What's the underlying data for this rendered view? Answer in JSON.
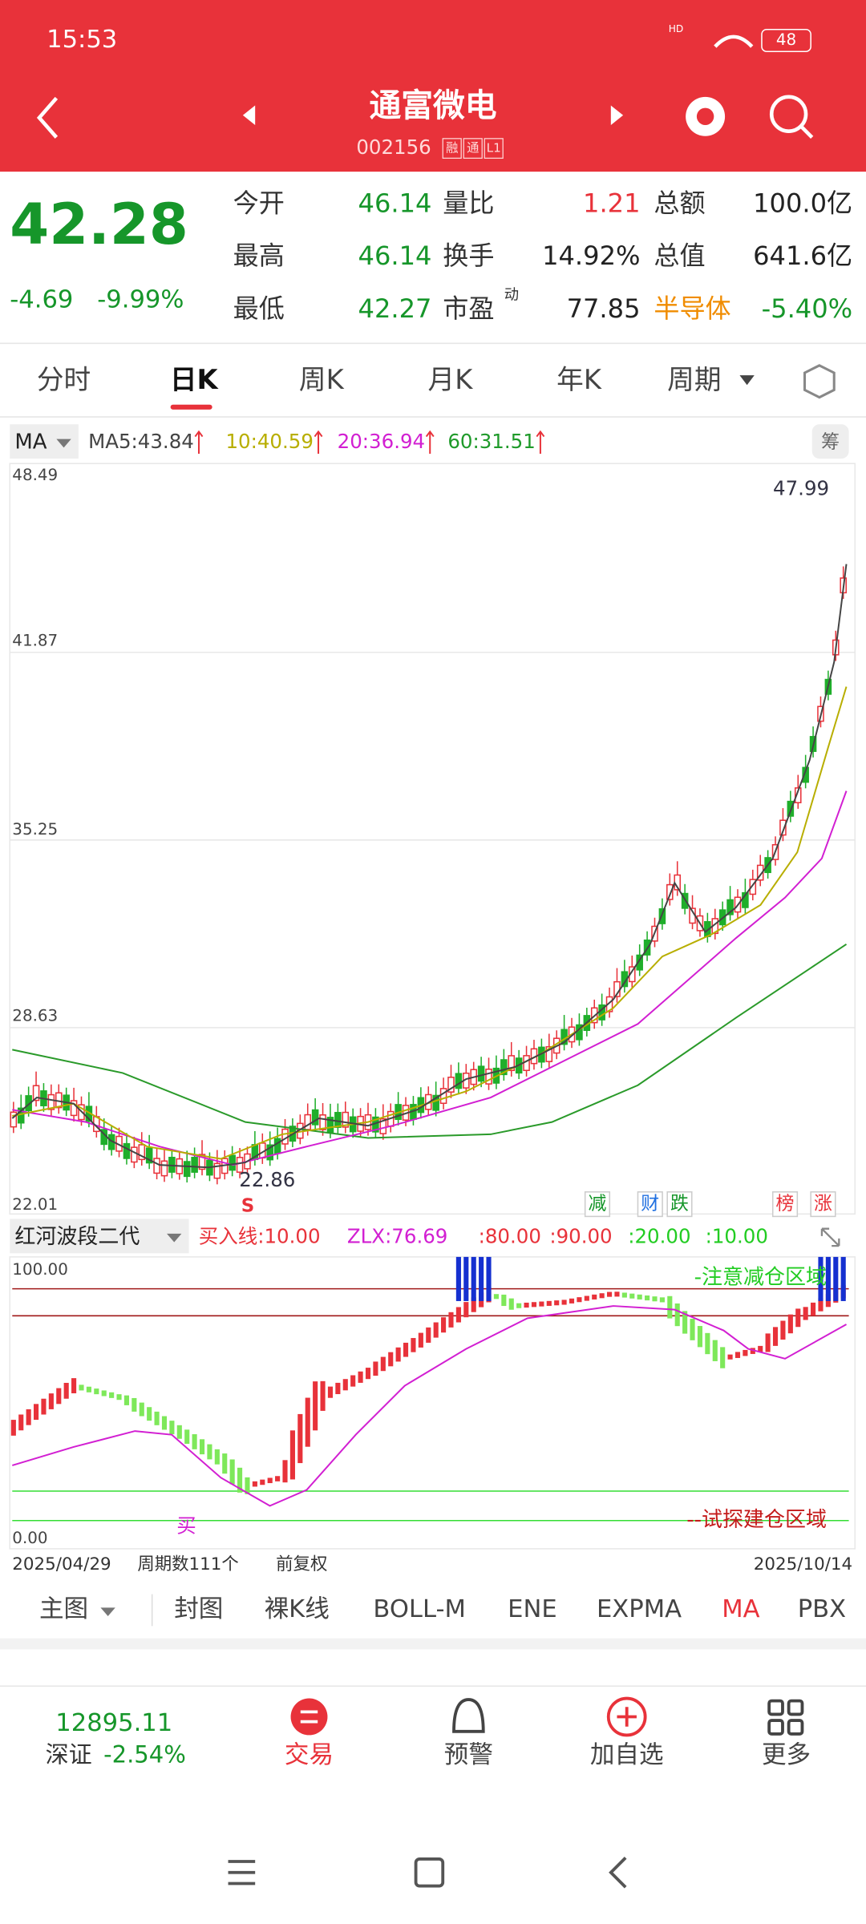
{
  "status_bar": {
    "time": "15:53",
    "hd": "HD",
    "battery": "48"
  },
  "header": {
    "title": "通富微电",
    "code": "002156",
    "tags": [
      "融",
      "通",
      "L1"
    ]
  },
  "quote": {
    "price": "42.28",
    "change": "-4.69",
    "change_pct": "-9.99%",
    "fields": [
      [
        {
          "label": "今开",
          "value": "46.14"
        },
        {
          "label": "量比",
          "value": "1.21"
        },
        {
          "label": "总额",
          "value": "100.0亿"
        }
      ],
      [
        {
          "label": "最高",
          "value": "46.14"
        },
        {
          "label": "换手",
          "value": "14.92%"
        },
        {
          "label": "总值",
          "value": "641.6亿"
        }
      ],
      [
        {
          "label": "最低",
          "value": "42.27"
        },
        {
          "label": "市盈",
          "label_sup": "动",
          "value": "77.85"
        },
        {
          "label": "半导体",
          "value": "-5.40%"
        }
      ]
    ]
  },
  "tabs": [
    "分时",
    "日K",
    "周K",
    "月K",
    "年K",
    "周期"
  ],
  "ma_legend": {
    "indicator": "MA",
    "items": [
      "MA5:43.84",
      "10:40.59",
      "20:36.94",
      "60:31.51"
    ],
    "chip_button": "筹"
  },
  "main_chart": {
    "axis_labels": [
      "48.49",
      "41.87",
      "35.25",
      "28.63",
      "22.01"
    ],
    "high_label": "47.99",
    "low_label": "22.86",
    "signal": "S",
    "badges": [
      "减",
      "财",
      "跌",
      "榜",
      "涨"
    ]
  },
  "indicator": {
    "name": "红河波段二代",
    "params": [
      "买入线:10.00",
      "ZLX:76.69",
      ":80.00",
      ":90.00",
      ":20.00",
      ":10.00"
    ],
    "axis_labels": [
      "100.00",
      "0.00"
    ],
    "top_zone": "-注意减仓区域",
    "bottom_zone": "--试探建仓区域",
    "buy_signal": "买"
  },
  "footer": {
    "start_date": "2025/04/29",
    "period_count": "周期数111个",
    "adjust": "前复权",
    "end_date": "2025/10/14"
  },
  "indicator_tabs": [
    "主图",
    "封图",
    "裸K线",
    "BOLL-M",
    "ENE",
    "EXPMA",
    "MA",
    "PBX"
  ],
  "bottom_nav": {
    "index_value": "12895.11",
    "index_name": "深证",
    "index_change": "-2.54%",
    "items": [
      "交易",
      "预警",
      "加自选",
      "更多"
    ]
  }
}
